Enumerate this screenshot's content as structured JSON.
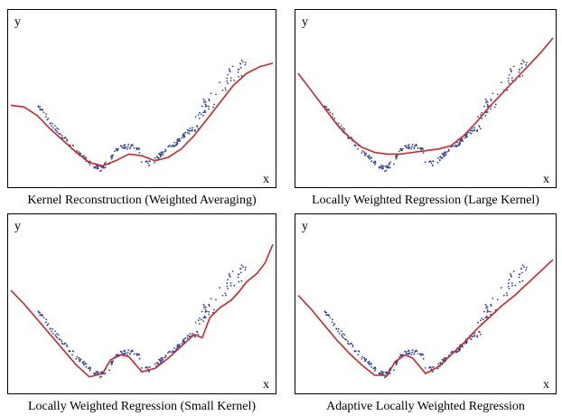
{
  "colors": {
    "points": "#2b3fa0",
    "curve": "#c8282a",
    "frame": "#000000"
  },
  "chart_data": [
    {
      "type": "line",
      "title": "Kernel Reconstruction (Weighted Averaging)",
      "xlabel": "x",
      "ylabel": "y",
      "xlim": [
        0,
        1
      ],
      "ylim": [
        0,
        1
      ],
      "series": [
        {
          "values": [
            [
              0.0,
              0.46
            ],
            [
              0.05,
              0.45
            ],
            [
              0.1,
              0.4
            ],
            [
              0.15,
              0.32
            ],
            [
              0.2,
              0.25
            ],
            [
              0.25,
              0.18
            ],
            [
              0.3,
              0.12
            ],
            [
              0.35,
              0.1
            ],
            [
              0.4,
              0.13
            ],
            [
              0.45,
              0.17
            ],
            [
              0.5,
              0.16
            ],
            [
              0.55,
              0.13
            ],
            [
              0.6,
              0.15
            ],
            [
              0.65,
              0.2
            ],
            [
              0.7,
              0.28
            ],
            [
              0.75,
              0.38
            ],
            [
              0.8,
              0.48
            ],
            [
              0.85,
              0.58
            ],
            [
              0.9,
              0.65
            ],
            [
              0.95,
              0.69
            ],
            [
              1.0,
              0.71
            ]
          ]
        }
      ]
    },
    {
      "type": "line",
      "title": "Locally Weighted Regression (Large Kernel)",
      "xlabel": "x",
      "ylabel": "y",
      "xlim": [
        0,
        1
      ],
      "ylim": [
        0,
        1
      ],
      "series": [
        {
          "values": [
            [
              0.0,
              0.65
            ],
            [
              0.05,
              0.55
            ],
            [
              0.1,
              0.45
            ],
            [
              0.15,
              0.35
            ],
            [
              0.2,
              0.27
            ],
            [
              0.25,
              0.21
            ],
            [
              0.3,
              0.18
            ],
            [
              0.35,
              0.17
            ],
            [
              0.4,
              0.17
            ],
            [
              0.45,
              0.18
            ],
            [
              0.5,
              0.19
            ],
            [
              0.55,
              0.2
            ],
            [
              0.6,
              0.22
            ],
            [
              0.65,
              0.28
            ],
            [
              0.7,
              0.36
            ],
            [
              0.75,
              0.45
            ],
            [
              0.8,
              0.53
            ],
            [
              0.85,
              0.61
            ],
            [
              0.9,
              0.69
            ],
            [
              0.95,
              0.77
            ],
            [
              1.0,
              0.86
            ]
          ]
        }
      ]
    },
    {
      "type": "line",
      "title": "Locally Weighted Regression (Small Kernel)",
      "xlabel": "x",
      "ylabel": "y",
      "xlim": [
        0,
        1
      ],
      "ylim": [
        0,
        1
      ],
      "series": [
        {
          "values": [
            [
              0.0,
              0.58
            ],
            [
              0.05,
              0.5
            ],
            [
              0.1,
              0.41
            ],
            [
              0.15,
              0.32
            ],
            [
              0.2,
              0.23
            ],
            [
              0.25,
              0.14
            ],
            [
              0.3,
              0.07
            ],
            [
              0.35,
              0.09
            ],
            [
              0.38,
              0.17
            ],
            [
              0.42,
              0.2
            ],
            [
              0.45,
              0.19
            ],
            [
              0.5,
              0.1
            ],
            [
              0.55,
              0.12
            ],
            [
              0.6,
              0.18
            ],
            [
              0.65,
              0.25
            ],
            [
              0.7,
              0.32
            ],
            [
              0.73,
              0.3
            ],
            [
              0.76,
              0.42
            ],
            [
              0.8,
              0.48
            ],
            [
              0.84,
              0.52
            ],
            [
              0.87,
              0.57
            ],
            [
              0.9,
              0.63
            ],
            [
              0.94,
              0.68
            ],
            [
              0.97,
              0.74
            ],
            [
              1.0,
              0.85
            ]
          ]
        }
      ]
    },
    {
      "type": "line",
      "title": "Adaptive Locally Weighted Regression",
      "xlabel": "x",
      "ylabel": "y",
      "xlim": [
        0,
        1
      ],
      "ylim": [
        0,
        1
      ],
      "series": [
        {
          "values": [
            [
              0.0,
              0.55
            ],
            [
              0.05,
              0.47
            ],
            [
              0.1,
              0.38
            ],
            [
              0.15,
              0.29
            ],
            [
              0.2,
              0.21
            ],
            [
              0.25,
              0.14
            ],
            [
              0.3,
              0.08
            ],
            [
              0.35,
              0.08
            ],
            [
              0.38,
              0.16
            ],
            [
              0.42,
              0.2
            ],
            [
              0.45,
              0.18
            ],
            [
              0.5,
              0.09
            ],
            [
              0.55,
              0.13
            ],
            [
              0.6,
              0.2
            ],
            [
              0.65,
              0.27
            ],
            [
              0.7,
              0.35
            ],
            [
              0.75,
              0.42
            ],
            [
              0.8,
              0.49
            ],
            [
              0.85,
              0.55
            ],
            [
              0.9,
              0.62
            ],
            [
              0.95,
              0.69
            ],
            [
              1.0,
              0.76
            ]
          ]
        }
      ]
    }
  ]
}
